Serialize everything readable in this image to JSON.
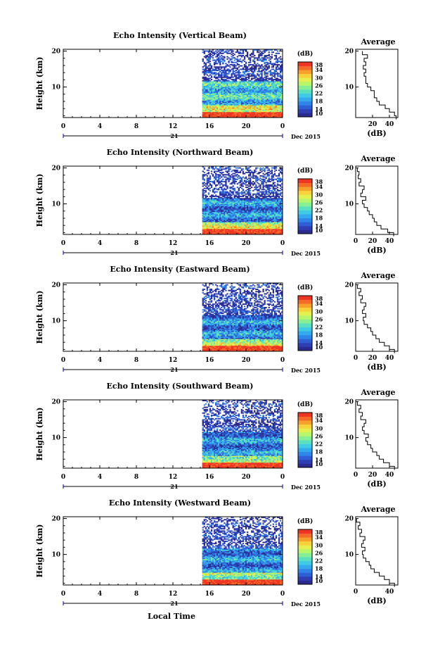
{
  "figure": {
    "xlabel": "Local Time",
    "date_label": "Dec 2015",
    "day_label": "21"
  },
  "chart_data": [
    {
      "type": "heatmap",
      "title": "Echo Intensity (Vertical Beam)",
      "ylabel": "Height (km)",
      "xlabel": "Local Time",
      "x_ticks": [
        "0",
        "4",
        "8",
        "12",
        "16",
        "20",
        "0"
      ],
      "y_ticks": [
        "10",
        "20"
      ],
      "xlim": [
        0,
        24
      ],
      "ylim": [
        1.5,
        20.5
      ],
      "data_start_hour": 15.2,
      "colorbar": {
        "label": "(dB)",
        "ticks": [
          "10",
          "14",
          "18",
          "22",
          "26",
          "30",
          "34",
          "38"
        ],
        "range": [
          10,
          38
        ]
      },
      "profile": {
        "title": "Average",
        "xlabel": "(dB)",
        "x_ticks": [
          "20",
          "40"
        ],
        "xlim": [
          0,
          50
        ],
        "y_ticks": [
          "10",
          "20"
        ],
        "height_km": [
          1.5,
          2.5,
          3.5,
          4.5,
          5.5,
          6.5,
          7.5,
          8.5,
          9.5,
          10.5,
          11.5,
          12.5,
          13.5,
          14.5,
          15.5,
          16.5,
          17.5,
          18.5,
          19.5
        ],
        "db": [
          48,
          46,
          40,
          35,
          28,
          25,
          22,
          22,
          18,
          14,
          12,
          12,
          10,
          12,
          9,
          12,
          10,
          14,
          8
        ]
      }
    },
    {
      "type": "heatmap",
      "title": "Echo Intensity (Northward Beam)",
      "ylabel": "Height (km)",
      "xlabel": "Local Time",
      "x_ticks": [
        "0",
        "4",
        "8",
        "12",
        "16",
        "20",
        "0"
      ],
      "y_ticks": [
        "10",
        "20"
      ],
      "xlim": [
        0,
        24
      ],
      "ylim": [
        1.5,
        20.5
      ],
      "data_start_hour": 15.2,
      "colorbar": {
        "label": "(dB)",
        "ticks": [
          "10",
          "14",
          "18",
          "22",
          "26",
          "30",
          "34",
          "38"
        ],
        "range": [
          10,
          38
        ]
      },
      "profile": {
        "title": "Average",
        "xlabel": "(dB)",
        "x_ticks": [
          "0",
          "20",
          "40"
        ],
        "xlim": [
          0,
          50
        ],
        "y_ticks": [
          "10",
          "20"
        ],
        "height_km": [
          1.5,
          2.5,
          3.5,
          4.5,
          5.5,
          6.5,
          7.5,
          8.5,
          9.5,
          10.5,
          11.5,
          12.5,
          13.5,
          14.5,
          15.5,
          16.5,
          17.5,
          18.5,
          19.5
        ],
        "db": [
          45,
          38,
          30,
          25,
          22,
          20,
          16,
          14,
          10,
          8,
          12,
          6,
          8,
          10,
          4,
          6,
          3,
          4,
          2
        ]
      }
    },
    {
      "type": "heatmap",
      "title": "Echo Intensity (Eastward Beam)",
      "ylabel": "Height (km)",
      "xlabel": "Local Time",
      "x_ticks": [
        "0",
        "4",
        "8",
        "12",
        "16",
        "20",
        "0"
      ],
      "y_ticks": [
        "10",
        "20"
      ],
      "xlim": [
        0,
        24
      ],
      "ylim": [
        1.5,
        20.5
      ],
      "data_start_hour": 15.2,
      "colorbar": {
        "label": "(dB)",
        "ticks": [
          "10",
          "14",
          "18",
          "22",
          "26",
          "30",
          "34",
          "38"
        ],
        "range": [
          10,
          38
        ]
      },
      "profile": {
        "title": "Average",
        "xlabel": "(dB)",
        "x_ticks": [
          "0",
          "20",
          "40"
        ],
        "xlim": [
          0,
          50
        ],
        "y_ticks": [
          "10",
          "20"
        ],
        "height_km": [
          1.5,
          2.5,
          3.5,
          4.5,
          5.5,
          6.5,
          7.5,
          8.5,
          9.5,
          10.5,
          11.5,
          12.5,
          13.5,
          14.5,
          15.5,
          16.5,
          17.5,
          18.5,
          19.5
        ],
        "db": [
          46,
          40,
          34,
          28,
          24,
          20,
          18,
          14,
          10,
          9,
          12,
          8,
          10,
          12,
          6,
          8,
          4,
          6,
          2
        ]
      }
    },
    {
      "type": "heatmap",
      "title": "Echo Intensity (Southward Beam)",
      "ylabel": "Height (km)",
      "xlabel": "Local Time",
      "x_ticks": [
        "0",
        "4",
        "8",
        "12",
        "16",
        "20",
        "0"
      ],
      "y_ticks": [
        "10",
        "20"
      ],
      "xlim": [
        0,
        24
      ],
      "ylim": [
        1.5,
        20.5
      ],
      "data_start_hour": 15.2,
      "colorbar": {
        "label": "(dB)",
        "ticks": [
          "10",
          "14",
          "18",
          "22",
          "26",
          "30",
          "34",
          "38"
        ],
        "range": [
          10,
          38
        ]
      },
      "profile": {
        "title": "Average",
        "xlabel": "(dB)",
        "x_ticks": [
          "0",
          "20",
          "40"
        ],
        "xlim": [
          0,
          50
        ],
        "y_ticks": [
          "10",
          "20"
        ],
        "height_km": [
          1.5,
          2.5,
          3.5,
          4.5,
          5.5,
          6.5,
          7.5,
          8.5,
          9.5,
          10.5,
          11.5,
          12.5,
          13.5,
          14.5,
          15.5,
          16.5,
          17.5,
          18.5,
          19.5
        ],
        "db": [
          46,
          40,
          33,
          28,
          25,
          20,
          18,
          14,
          12,
          15,
          10,
          8,
          10,
          12,
          6,
          8,
          4,
          6,
          2
        ]
      }
    },
    {
      "type": "heatmap",
      "title": "Echo Intensity (Westward Beam)",
      "ylabel": "Height (km)",
      "xlabel": "Local Time",
      "x_ticks": [
        "0",
        "4",
        "8",
        "12",
        "16",
        "20",
        "0"
      ],
      "y_ticks": [
        "10",
        "20"
      ],
      "xlim": [
        0,
        24
      ],
      "ylim": [
        1.5,
        20.5
      ],
      "data_start_hour": 15.2,
      "colorbar": {
        "label": "(dB)",
        "ticks": [
          "10",
          "14",
          "18",
          "22",
          "26",
          "30",
          "34",
          "38"
        ],
        "range": [
          10,
          38
        ]
      },
      "profile": {
        "title": "Average",
        "xlabel": "(dB)",
        "x_ticks": [
          "0",
          "40"
        ],
        "xlim": [
          0,
          50
        ],
        "y_ticks": [
          "10",
          "20"
        ],
        "height_km": [
          1.5,
          2.5,
          3.5,
          4.5,
          5.5,
          6.5,
          7.5,
          8.5,
          9.5,
          10.5,
          11.5,
          12.5,
          13.5,
          14.5,
          15.5,
          16.5,
          17.5,
          18.5,
          19.5
        ],
        "db": [
          46,
          40,
          34,
          28,
          22,
          18,
          16,
          12,
          9,
          8,
          11,
          7,
          9,
          11,
          5,
          7,
          3,
          5,
          1
        ]
      }
    }
  ]
}
